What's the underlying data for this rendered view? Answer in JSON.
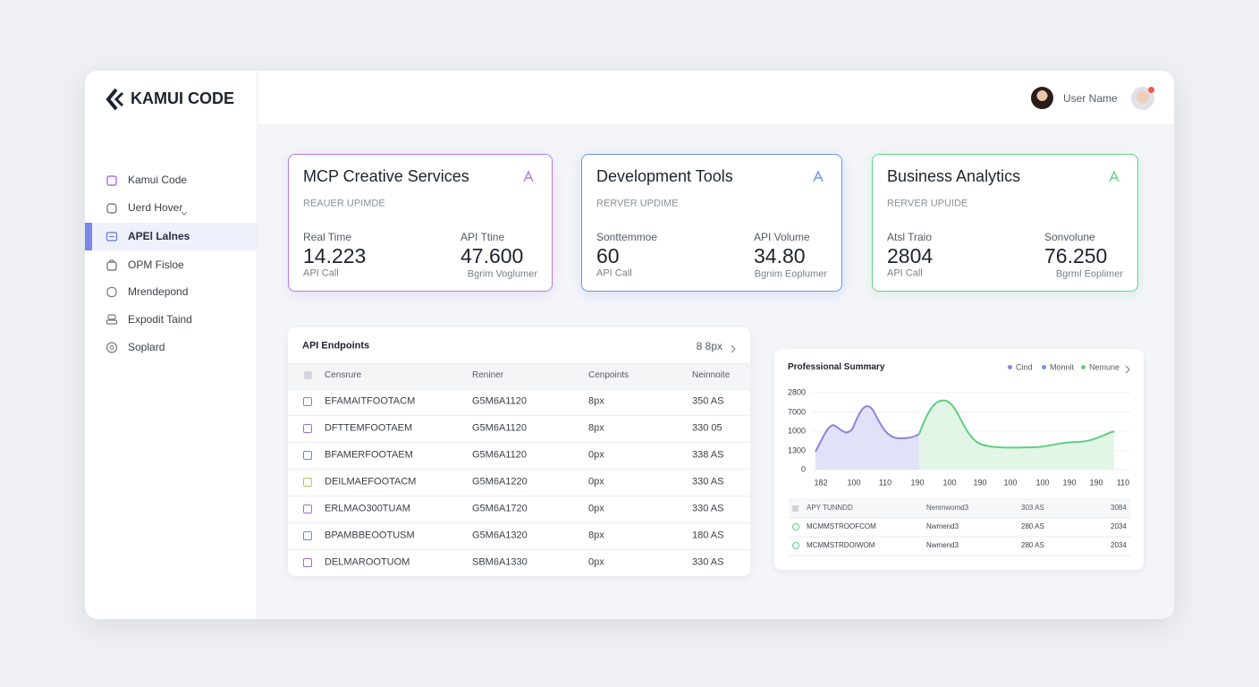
{
  "sidebar": {
    "logo": "KAMUI CODE",
    "nav": [
      "Kamui Code",
      "Uerd Hover",
      "APEl Lalnes",
      "OPM Fisloe",
      "Mrendepond",
      "Expodit Taind",
      "Soplard"
    ]
  },
  "topbar": {
    "user_name": "User Name"
  },
  "cards": [
    {
      "title": "MCP Creative Services",
      "subtitle": "REAUER UPIMDE",
      "left": {
        "label": "Real Time",
        "value": "14.223",
        "caption": "API Call"
      },
      "right": {
        "label": "API Ttine",
        "value": "47.600",
        "caption": "Bgrim Voglumer"
      }
    },
    {
      "title": "Development Tools",
      "subtitle": "RERVER UPDIME",
      "left": {
        "label": "Sonttemmoe",
        "value": "60",
        "caption": "API Call"
      },
      "right": {
        "label": "API Volume",
        "value": "34.80",
        "caption": "Bgnim Eoplumer"
      }
    },
    {
      "title": "Business Analytics",
      "subtitle": "RERVER UPUIDE",
      "left": {
        "label": "Atsl Traio",
        "value": "2804",
        "caption": "API Call"
      },
      "right": {
        "label": "Sonvolune",
        "value": "76.250",
        "caption": "Bgrml Eoplimer"
      }
    }
  ],
  "endpoints": {
    "title": "API Endpoints",
    "control": "8 8px",
    "columns": [
      "Censrure",
      "Reniner",
      "Cenpoints",
      "Neinnoite"
    ],
    "rows": [
      [
        "EFAMAITFOOTACM",
        "G5M6A1120",
        "8px",
        "350 AS"
      ],
      [
        "DFTTEMFOOTAEM",
        "G5M6A1120",
        "8px",
        "330 05"
      ],
      [
        "BFAMERFOOTAEM",
        "G5M6A1120",
        "0px",
        "338 AS"
      ],
      [
        "DEILMAEFOOTACM",
        "G5M6A1220",
        "0px",
        "330 AS"
      ],
      [
        "ERLMAO300TUAM",
        "G5M6A1720",
        "0px",
        "330 AS"
      ],
      [
        "BPAMBBEOOTUSM",
        "G5M6A1320",
        "8px",
        "180 AS"
      ],
      [
        "DELMAROOTUOM",
        "SBM6A1330",
        "0px",
        "330 AS"
      ]
    ]
  },
  "summary": {
    "title": "Professional Summary",
    "legend": [
      "Cind",
      "Monnit",
      "Nemune"
    ],
    "y_labels": [
      "2800",
      "7000",
      "1000",
      "1300",
      "0"
    ],
    "x_labels": [
      "182",
      "100",
      "110",
      "190",
      "100",
      "190",
      "100",
      "100",
      "190",
      "190",
      "110"
    ],
    "table": {
      "header": [
        "APY TUNNDD",
        "Nenmwomd3",
        "303 AS",
        "3084"
      ],
      "rows": [
        [
          "MCMMSTROOFCOM",
          "Nwmend3",
          "280 AS",
          "2034"
        ],
        [
          "MCMMSTRDOIWOM",
          "Nwmend3",
          "280 AS",
          "2034"
        ]
      ]
    }
  }
}
